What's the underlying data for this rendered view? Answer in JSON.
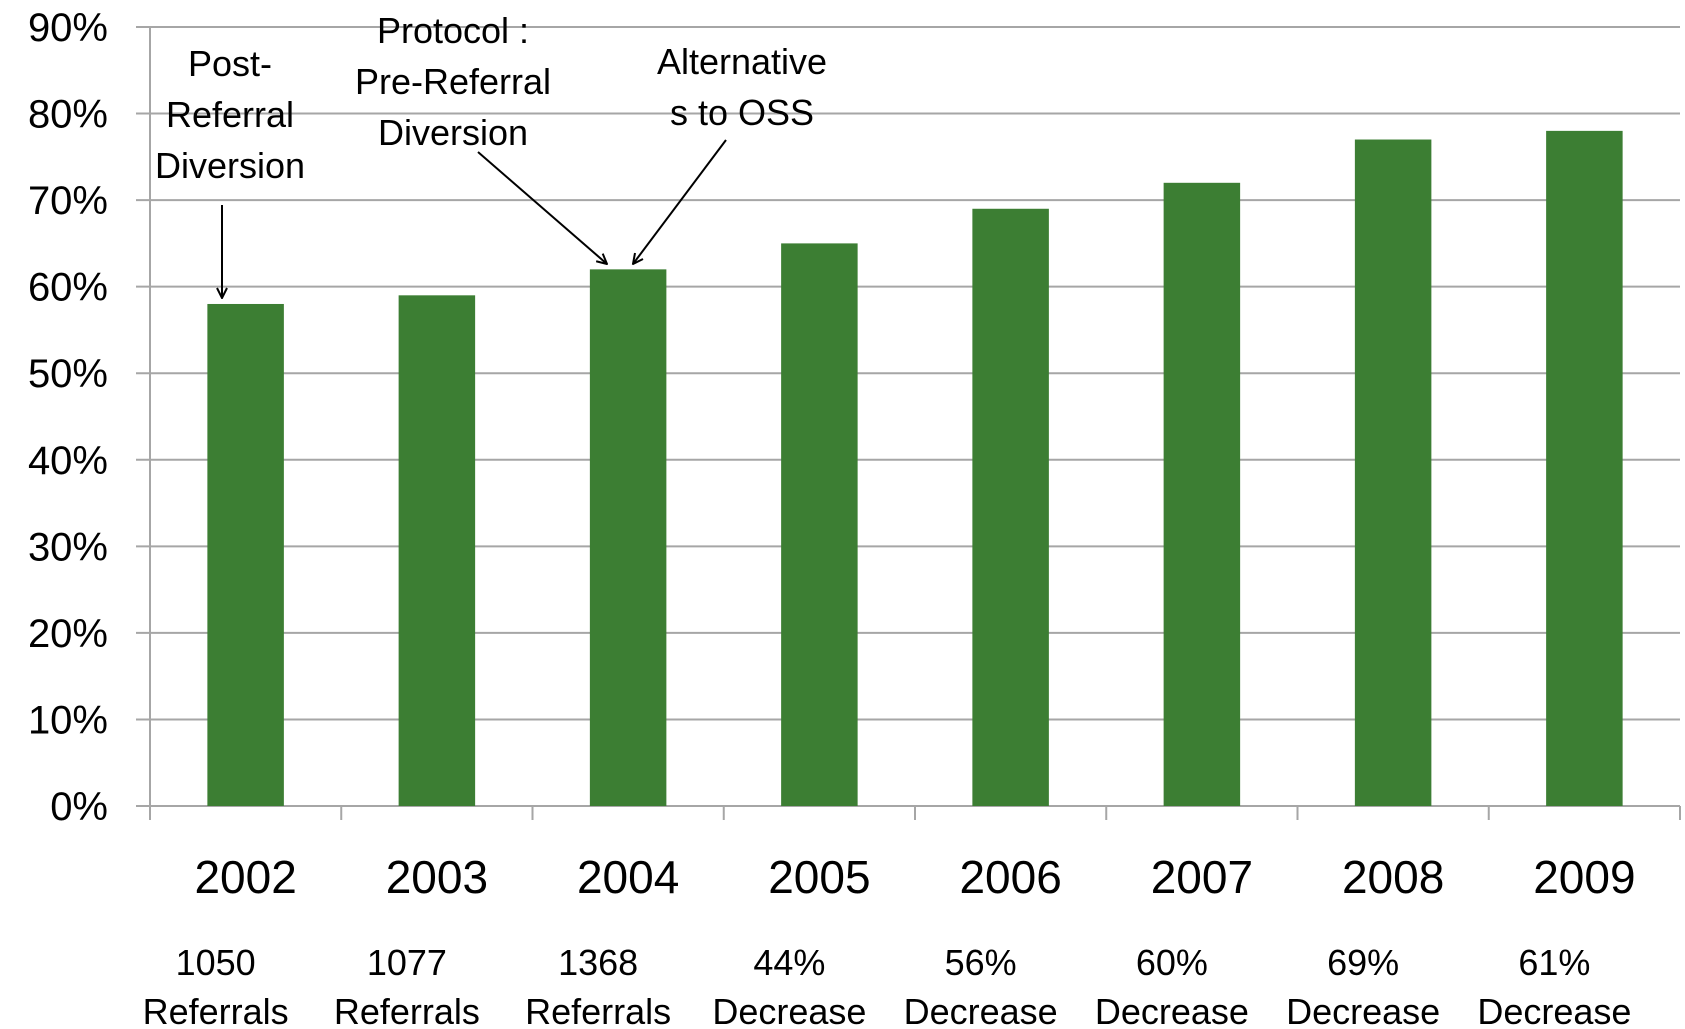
{
  "chart_data": {
    "type": "bar",
    "title": "",
    "xlabel": "",
    "ylabel": "",
    "ylim": [
      0,
      90
    ],
    "ytick_step": 10,
    "ytick_labels": [
      "0%",
      "10%",
      "20%",
      "30%",
      "40%",
      "50%",
      "60%",
      "70%",
      "80%",
      "90%"
    ],
    "grid": true,
    "legend": "none",
    "bar_color": "#3c7e33",
    "grid_color": "#a6a6a6",
    "categories": [
      "2002",
      "2003",
      "2004",
      "2005",
      "2006",
      "2007",
      "2008",
      "2009"
    ],
    "category_sublabels": [
      [
        "1050",
        "Referrals"
      ],
      [
        "1077",
        "Referrals"
      ],
      [
        "1368",
        "Referrals"
      ],
      [
        "44%",
        "Decrease"
      ],
      [
        "56%",
        "Decrease"
      ],
      [
        "60%",
        "Decrease"
      ],
      [
        "69%",
        "Decrease"
      ],
      [
        "61%",
        "Decrease"
      ]
    ],
    "values": [
      58,
      59,
      62,
      65,
      69,
      72,
      77,
      78
    ],
    "annotations": [
      {
        "lines": [
          "Post-",
          "Referral",
          "Diversion"
        ],
        "target": "2002"
      },
      {
        "lines": [
          "Protocol :",
          "Pre-Referral",
          "Diversion"
        ],
        "target": "2004"
      },
      {
        "lines": [
          "Alternative",
          "s to OSS"
        ],
        "target": "2004"
      }
    ]
  }
}
